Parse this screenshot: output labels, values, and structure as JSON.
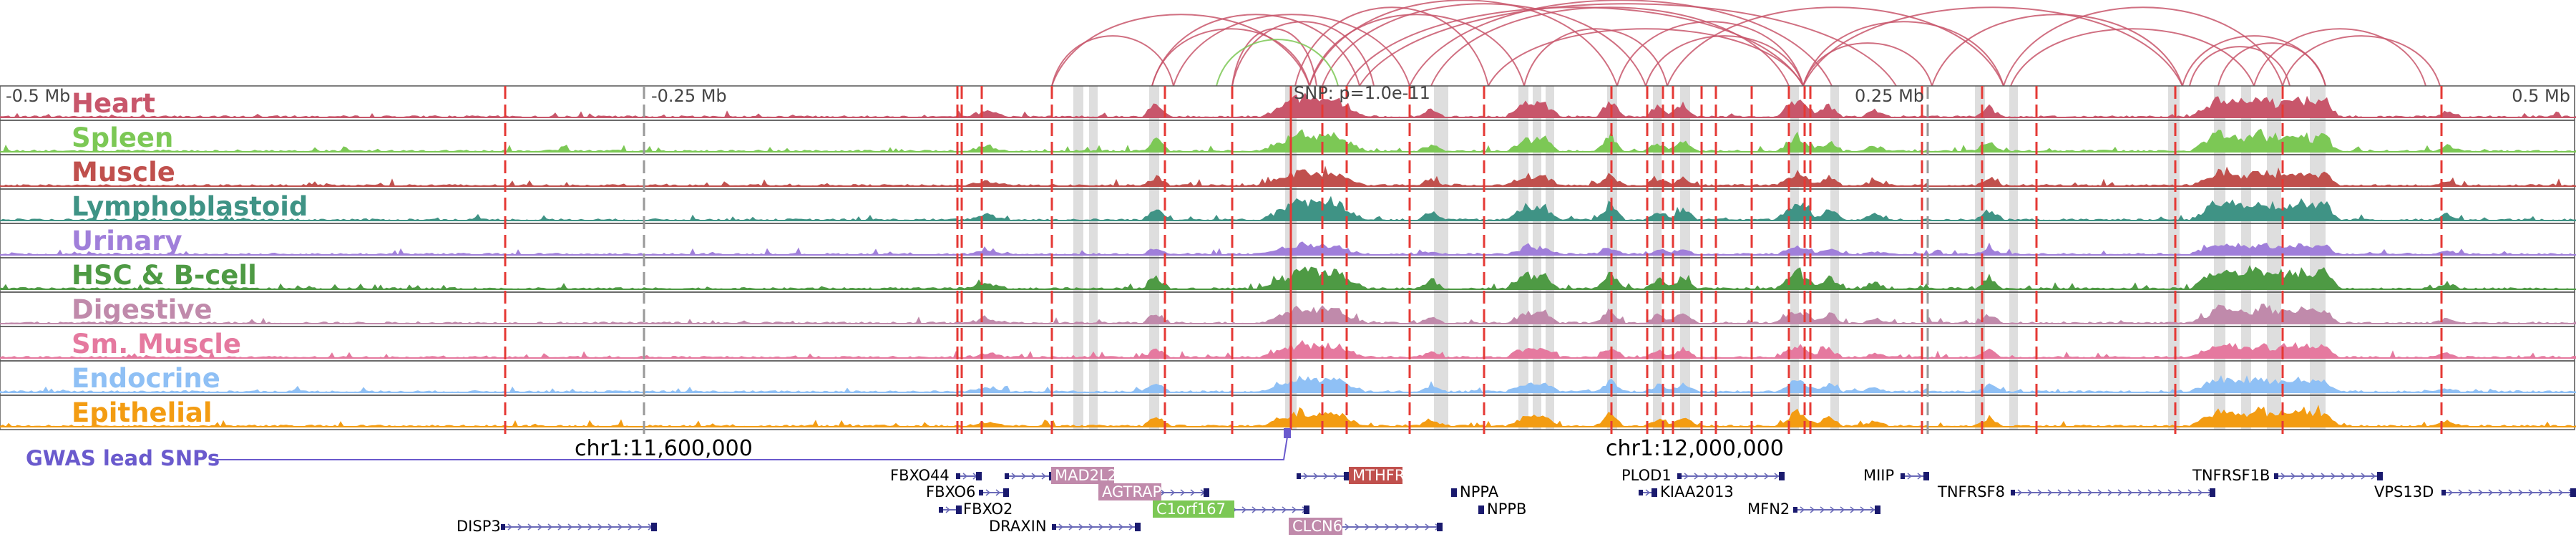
{
  "axis": {
    "left_label": "-0.5 Mb",
    "mid_left_label": "-0.25 Mb",
    "snp_label": "SNP: p=1.0e-11",
    "mid_right_label": "0.25 Mb",
    "right_label": "0.5 Mb"
  },
  "tracks": [
    {
      "name": "Heart",
      "color": "#c8566b",
      "peak_scale": 1.0
    },
    {
      "name": "Spleen",
      "color": "#7cc855",
      "peak_scale": 0.9
    },
    {
      "name": "Muscle",
      "color": "#c0504d",
      "peak_scale": 0.7
    },
    {
      "name": "Lymphoblastoid",
      "color": "#3f9385",
      "peak_scale": 1.0
    },
    {
      "name": "Urinary",
      "color": "#a07fda",
      "peak_scale": 0.5
    },
    {
      "name": "HSC & B-cell",
      "color": "#4e9a44",
      "peak_scale": 1.0
    },
    {
      "name": "Digestive",
      "color": "#c08aab",
      "peak_scale": 0.8
    },
    {
      "name": "Sm. Muscle",
      "color": "#e5799f",
      "peak_scale": 0.7
    },
    {
      "name": "Endocrine",
      "color": "#8fc0f5",
      "peak_scale": 0.7
    },
    {
      "name": "Epithelial",
      "color": "#f39c12",
      "peak_scale": 0.8
    }
  ],
  "gwas": {
    "label": "GWAS lead SNPs",
    "color": "#6a5acd"
  },
  "coordinates": {
    "left": "chr1:11,600,000",
    "right": "chr1:12,000,000"
  },
  "link_color": "#c8566b",
  "genes": [
    {
      "name": "FBXO44",
      "highlight": false
    },
    {
      "name": "FBXO6",
      "highlight": false
    },
    {
      "name": "FBXO2",
      "highlight": false
    },
    {
      "name": "DISP3",
      "highlight": false
    },
    {
      "name": "MAD2L2",
      "highlight": true,
      "color": "#c08aab"
    },
    {
      "name": "AGTRAP",
      "highlight": true,
      "color": "#c08aab"
    },
    {
      "name": "C1orf167",
      "highlight": true,
      "color": "#7cc855"
    },
    {
      "name": "DRAXIN",
      "highlight": false
    },
    {
      "name": "MTHFR",
      "highlight": true,
      "color": "#c0504d"
    },
    {
      "name": "CLCN6",
      "highlight": true,
      "color": "#c08aab"
    },
    {
      "name": "NPPA",
      "highlight": false
    },
    {
      "name": "NPPB",
      "highlight": false
    },
    {
      "name": "PLOD1",
      "highlight": false
    },
    {
      "name": "KIAA2013",
      "highlight": false
    },
    {
      "name": "MFN2",
      "highlight": false
    },
    {
      "name": "MIIP",
      "highlight": false
    },
    {
      "name": "TNFRSF8",
      "highlight": false
    },
    {
      "name": "TNFRSF1B",
      "highlight": false
    },
    {
      "name": "VPS13D",
      "highlight": false
    }
  ]
}
